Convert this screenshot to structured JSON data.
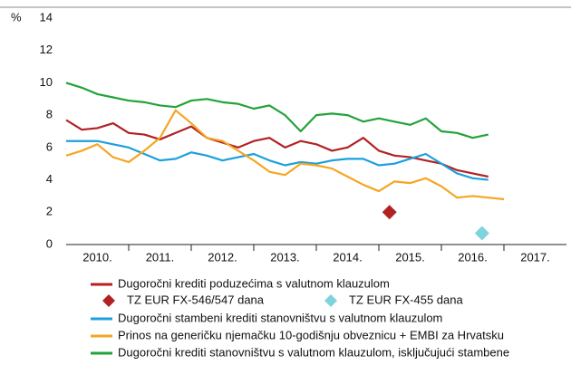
{
  "chart_data": {
    "type": "line",
    "y_unit": "%",
    "x": [
      2010,
      2010.25,
      2010.5,
      2010.75,
      2011,
      2011.25,
      2011.5,
      2011.75,
      2012,
      2012.25,
      2012.5,
      2012.75,
      2013,
      2013.25,
      2013.5,
      2013.75,
      2014,
      2014.25,
      2014.5,
      2014.75,
      2015,
      2015.25,
      2015.5,
      2015.75,
      2016,
      2016.25,
      2016.5,
      2016.75,
      2017
    ],
    "series": [
      {
        "name": "Dugoročni krediti poduzećima s valutnom klauzulom",
        "color": "#b22222",
        "values": [
          7.7,
          7.1,
          7.2,
          7.5,
          6.9,
          6.8,
          6.5,
          6.9,
          7.3,
          6.6,
          6.3,
          6.0,
          6.4,
          6.6,
          6.0,
          6.4,
          6.2,
          5.8,
          6.0,
          6.6,
          5.8,
          5.5,
          5.4,
          5.2,
          5.0,
          4.6,
          4.4,
          4.2,
          null
        ]
      },
      {
        "name": "Dugoročni stambeni krediti stanovništvu s valutnom klauzulom",
        "color": "#1ca0dc",
        "values": [
          6.4,
          6.4,
          6.4,
          6.2,
          6.0,
          5.6,
          5.2,
          5.3,
          5.7,
          5.5,
          5.2,
          5.4,
          5.6,
          5.2,
          4.9,
          5.1,
          5.0,
          5.2,
          5.3,
          5.3,
          4.9,
          5.0,
          5.3,
          5.6,
          5.0,
          4.4,
          4.1,
          4.0,
          null
        ]
      },
      {
        "name": "Prinos na generičku njemačku 10-godišnju obveznicu + EMBI za Hrvatsku",
        "color": "#f5a623",
        "values": [
          5.5,
          5.8,
          6.2,
          5.4,
          5.1,
          5.8,
          6.6,
          8.3,
          7.5,
          6.6,
          6.4,
          5.8,
          5.2,
          4.5,
          4.3,
          5.0,
          4.9,
          4.7,
          4.2,
          3.7,
          3.3,
          3.9,
          3.8,
          4.1,
          3.6,
          2.9,
          3.0,
          2.9,
          2.8
        ]
      },
      {
        "name": "Dugoročni krediti stanovništvu s valutnom klauzulom, isključujući stambene",
        "color": "#22a33a",
        "values": [
          10.0,
          9.7,
          9.3,
          9.1,
          8.9,
          8.8,
          8.6,
          8.5,
          8.9,
          9.0,
          8.8,
          8.7,
          8.4,
          8.6,
          8.0,
          7.0,
          8.0,
          8.1,
          8.0,
          7.6,
          7.8,
          7.6,
          7.4,
          7.8,
          7.0,
          6.9,
          6.6,
          6.8,
          null
        ]
      }
    ],
    "points": [
      {
        "name": "TZ EUR FX-546/547 dana",
        "color": "#b22222",
        "x": 2015.17,
        "y": 2.0
      },
      {
        "name": "TZ EUR FX-455 dana",
        "color": "#7fd3de",
        "x": 2016.65,
        "y": 0.7
      }
    ],
    "xlim": [
      2010,
      2018
    ],
    "xticks": [
      {
        "value": 2010.5,
        "label": "2010."
      },
      {
        "value": 2011.5,
        "label": "2011."
      },
      {
        "value": 2012.5,
        "label": "2012."
      },
      {
        "value": 2013.5,
        "label": "2013."
      },
      {
        "value": 2014.5,
        "label": "2014."
      },
      {
        "value": 2015.5,
        "label": "2015."
      },
      {
        "value": 2016.5,
        "label": "2016."
      },
      {
        "value": 2017.5,
        "label": "2017."
      }
    ],
    "ylim": [
      0,
      14
    ],
    "yticks": [
      0,
      2,
      4,
      6,
      8,
      10,
      12,
      14
    ],
    "grid": false
  }
}
